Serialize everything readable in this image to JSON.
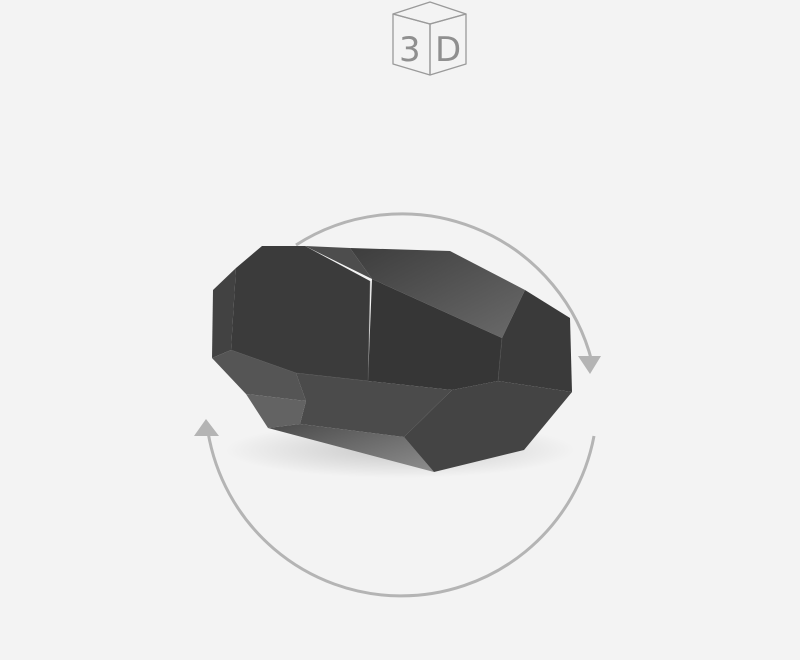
{
  "badge": {
    "digit": "3",
    "letter": "D",
    "icon": "3d-cube-icon"
  },
  "viewer": {
    "object": "faceted-stone-model",
    "rotate_icon": "rotate-arrows-icon",
    "colors": {
      "background": "#f3f3f3",
      "arrow": "#b4b4b4",
      "stone_dark": "#333333",
      "stone_light": "#8a8a8a"
    }
  }
}
